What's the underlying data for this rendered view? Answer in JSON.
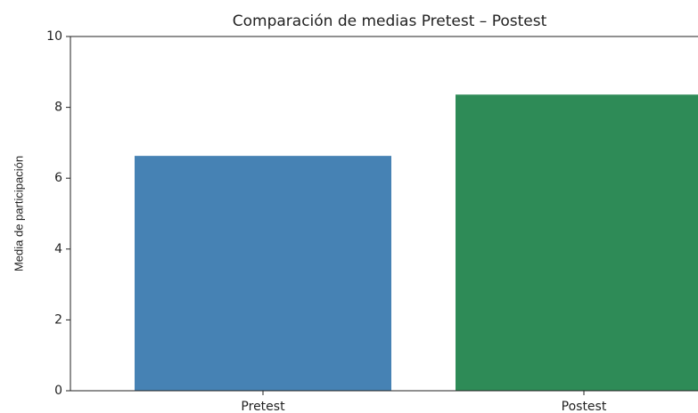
{
  "chart_data": {
    "type": "bar",
    "title": "Comparación de medias Pretest – Postest",
    "ylabel": "Media de participación",
    "categories": [
      "Pretest",
      "Postest"
    ],
    "values": [
      6.63,
      8.36
    ],
    "colors": [
      "#4682b4",
      "#2e8b57"
    ],
    "ylim": [
      0,
      10
    ],
    "yticks": [
      0,
      2,
      4,
      6,
      8,
      10
    ],
    "grid": false
  }
}
